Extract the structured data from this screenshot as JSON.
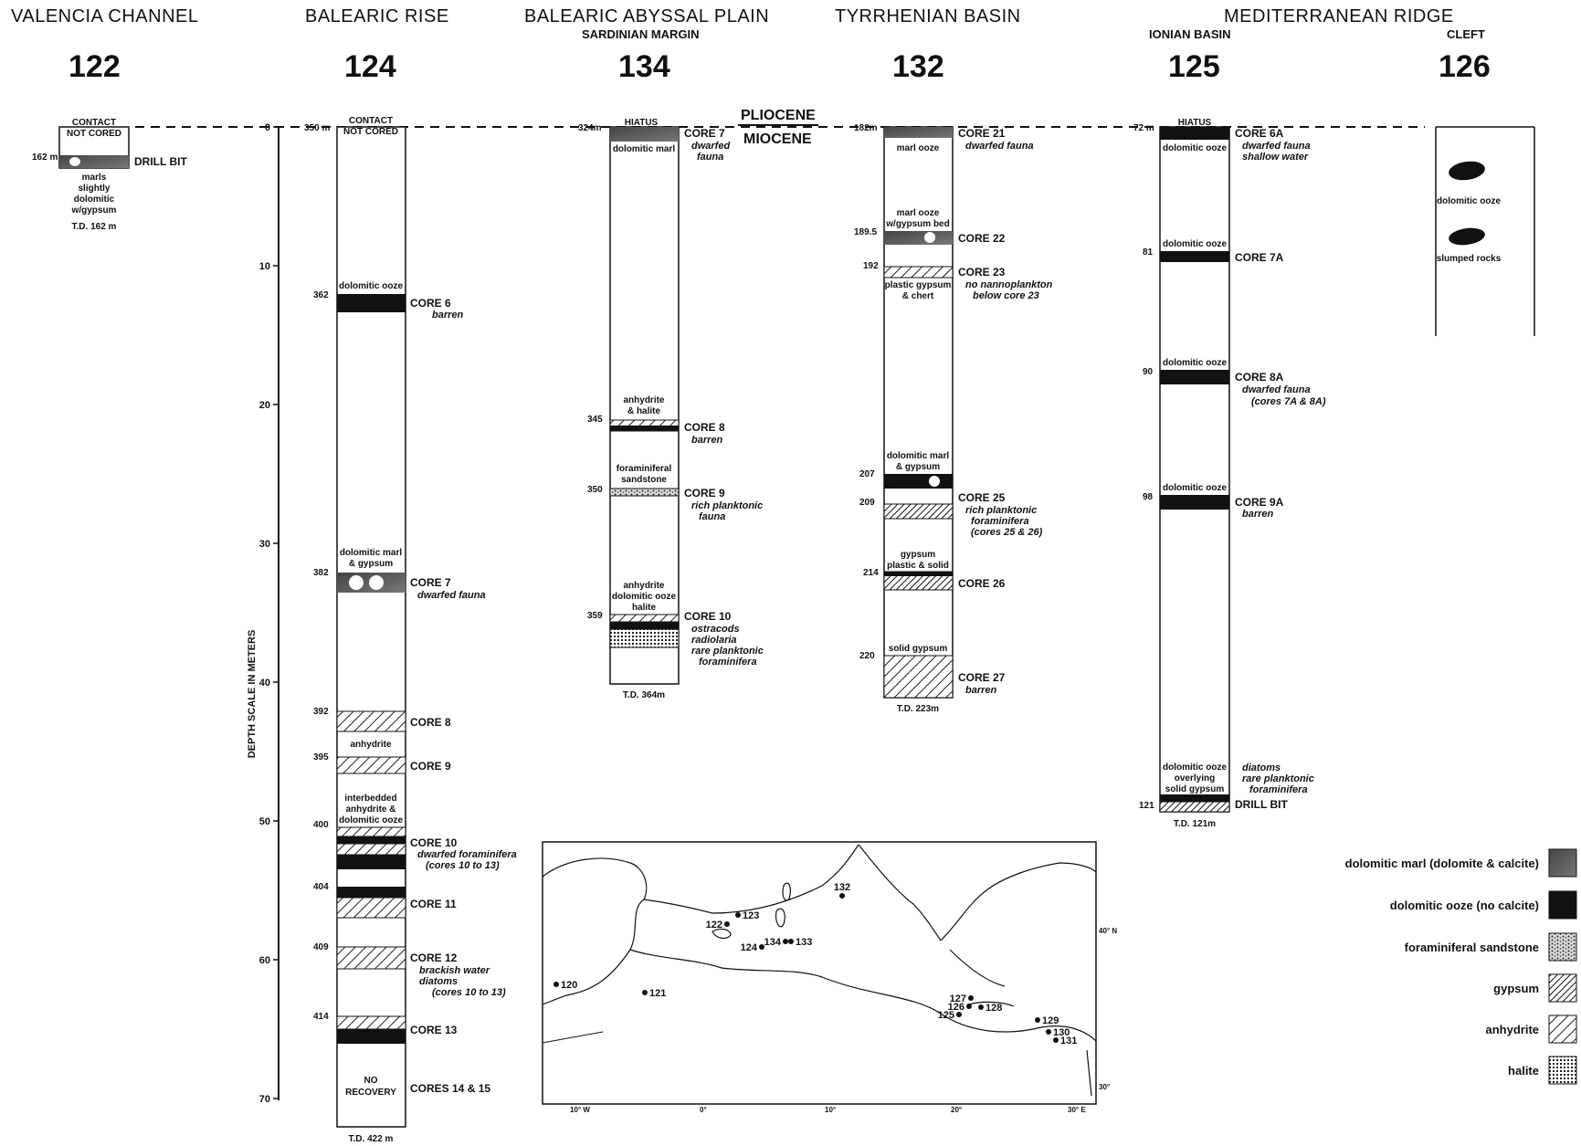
{
  "regions": [
    {
      "id": "valencia",
      "label": "VALENCIA CHANNEL",
      "sub": ""
    },
    {
      "id": "balearic_rise",
      "label": "BALEARIC RISE",
      "sub": ""
    },
    {
      "id": "abyssal",
      "label": "BALEARIC ABYSSAL PLAIN",
      "sub": "SARDINIAN MARGIN"
    },
    {
      "id": "tyrrhenian",
      "label": "TYRRHENIAN BASIN",
      "sub": ""
    },
    {
      "id": "medridge",
      "label": "MEDITERRANEAN RIDGE",
      "sub": "IONIAN BASIN"
    },
    {
      "id": "cleft",
      "label": "",
      "sub": "CLEFT"
    }
  ],
  "epochs": {
    "upper": "PLIOCENE",
    "lower": "MIOCENE"
  },
  "depth_axis": {
    "label": "DEPTH SCALE IN METERS",
    "ticks": [
      "0",
      "10",
      "20",
      "30",
      "40",
      "50",
      "60",
      "70"
    ]
  },
  "sites": [
    {
      "id": "122",
      "top_text": [
        "CONTACT",
        "NOT CORED"
      ],
      "td": "T.D. 162 m",
      "depths": [
        "162 m"
      ],
      "lithology": [
        "marls",
        "slightly",
        "dolomitic",
        "w/gypsum"
      ],
      "cores": [
        {
          "label": "DRILL BIT",
          "note": []
        }
      ]
    },
    {
      "id": "124",
      "top_text": [
        "CONTACT",
        "NOT CORED"
      ],
      "top_depth": "350 m",
      "td": "T.D. 422 m",
      "depths": [
        "362",
        "382",
        "392",
        "395",
        "400",
        "404",
        "409",
        "414"
      ],
      "lithology": [
        [
          "dolomitic ooze"
        ],
        [
          "dolomitic marl",
          "& gypsum"
        ],
        [
          "anhydrite"
        ],
        [
          "interbedded",
          "anhydrite &",
          "dolomitic ooze"
        ],
        [
          "NO",
          "RECOVERY"
        ]
      ],
      "cores": [
        {
          "label": "CORE 6",
          "note": [
            "barren"
          ]
        },
        {
          "label": "CORE 7",
          "note": [
            "dwarfed fauna"
          ]
        },
        {
          "label": "CORE 8",
          "note": []
        },
        {
          "label": "CORE 9",
          "note": []
        },
        {
          "label": "CORE 10",
          "note": [
            "dwarfed foraminifera",
            "(cores 10 to 13)"
          ]
        },
        {
          "label": "CORE 11",
          "note": []
        },
        {
          "label": "CORE 12",
          "note": [
            "brackish water",
            "diatoms",
            "(cores 10 to 13)"
          ]
        },
        {
          "label": "CORE 13",
          "note": []
        },
        {
          "label": "CORES 14 & 15",
          "note": []
        }
      ]
    },
    {
      "id": "134",
      "top_text": [
        "HIATUS"
      ],
      "top_depth": "324m",
      "td": "T.D. 364m",
      "depths": [
        "345",
        "350",
        "359"
      ],
      "lithology": [
        [
          "dolomitic marl"
        ],
        [
          "anhydrite",
          "& halite"
        ],
        [
          "foraminiferal",
          "sandstone"
        ],
        [
          "anhydrite",
          "dolomitic ooze",
          "halite"
        ]
      ],
      "cores": [
        {
          "label": "CORE 7",
          "note": [
            "dwarfed",
            "fauna"
          ]
        },
        {
          "label": "CORE 8",
          "note": [
            "barren"
          ]
        },
        {
          "label": "CORE 9",
          "note": [
            "rich planktonic",
            "fauna"
          ]
        },
        {
          "label": "CORE 10",
          "note": [
            "ostracods",
            "radiolaria",
            "rare planktonic",
            "foraminifera"
          ]
        }
      ]
    },
    {
      "id": "132",
      "top_text": [],
      "top_depth": "182m",
      "td": "T.D. 223m",
      "depths": [
        "189.5",
        "192",
        "207",
        "209",
        "214",
        "220"
      ],
      "lithology": [
        [
          "marl ooze"
        ],
        [
          "marl ooze",
          "w/gypsum bed"
        ],
        [
          "plastic gypsum",
          "& chert"
        ],
        [
          "dolomitic marl",
          "& gypsum"
        ],
        [
          "gypsum",
          "plastic & solid"
        ],
        [
          "solid gypsum"
        ]
      ],
      "cores": [
        {
          "label": "CORE 21",
          "note": [
            "dwarfed fauna"
          ]
        },
        {
          "label": "CORE 22",
          "note": []
        },
        {
          "label": "CORE 23",
          "note": [
            "no nannoplankton",
            "below core 23"
          ]
        },
        {
          "label": "CORE 25",
          "note": [
            "rich planktonic",
            "foraminifera",
            "(cores 25 & 26)"
          ]
        },
        {
          "label": "CORE 26",
          "note": []
        },
        {
          "label": "CORE 27",
          "note": [
            "barren"
          ]
        }
      ]
    },
    {
      "id": "125",
      "top_text": [
        "HIATUS"
      ],
      "top_depth": "72 m",
      "td": "T.D. 121m",
      "depths": [
        "81",
        "90",
        "98",
        "121"
      ],
      "lithology": [
        [
          "dolomitic ooze"
        ],
        [
          "dolomitic ooze"
        ],
        [
          "dolomitic ooze"
        ],
        [
          "dolomitic ooze"
        ],
        [
          "dolomitic ooze",
          "overlying",
          "solid gypsum"
        ]
      ],
      "cores": [
        {
          "label": "CORE 6A",
          "note": [
            "dwarfed fauna",
            "shallow water"
          ]
        },
        {
          "label": "CORE 7A",
          "note": []
        },
        {
          "label": "CORE 8A",
          "note": [
            "dwarfed fauna",
            "(cores 7A & 8A)"
          ]
        },
        {
          "label": "CORE 9A",
          "note": [
            "barren"
          ]
        },
        {
          "label": "DRILL BIT",
          "note": [
            "diatoms",
            "rare planktonic",
            "foraminifera"
          ]
        }
      ]
    },
    {
      "id": "126",
      "top_text": [],
      "td": "",
      "lithology": [
        [
          "dolomitic ooze"
        ],
        [
          "slumped rocks"
        ]
      ],
      "cores": []
    }
  ],
  "map": {
    "sites": [
      "120",
      "121",
      "122",
      "123",
      "124",
      "134",
      "133",
      "132",
      "127",
      "126",
      "128",
      "125",
      "129",
      "130",
      "131"
    ],
    "lat_labels": [
      "40° N",
      "30°"
    ],
    "lon_labels": [
      "10° W",
      "0°",
      "10°",
      "20°",
      "30° E"
    ]
  },
  "legend": [
    {
      "label": "dolomitic marl  (dolomite & calcite)",
      "pattern": "marl"
    },
    {
      "label": "dolomitic ooze   (no calcite)",
      "pattern": "ooze"
    },
    {
      "label": "foraminiferal sandstone",
      "pattern": "sand"
    },
    {
      "label": "gypsum",
      "pattern": "gypsum"
    },
    {
      "label": "anhydrite",
      "pattern": "anhydrite"
    },
    {
      "label": "halite",
      "pattern": "halite"
    }
  ]
}
